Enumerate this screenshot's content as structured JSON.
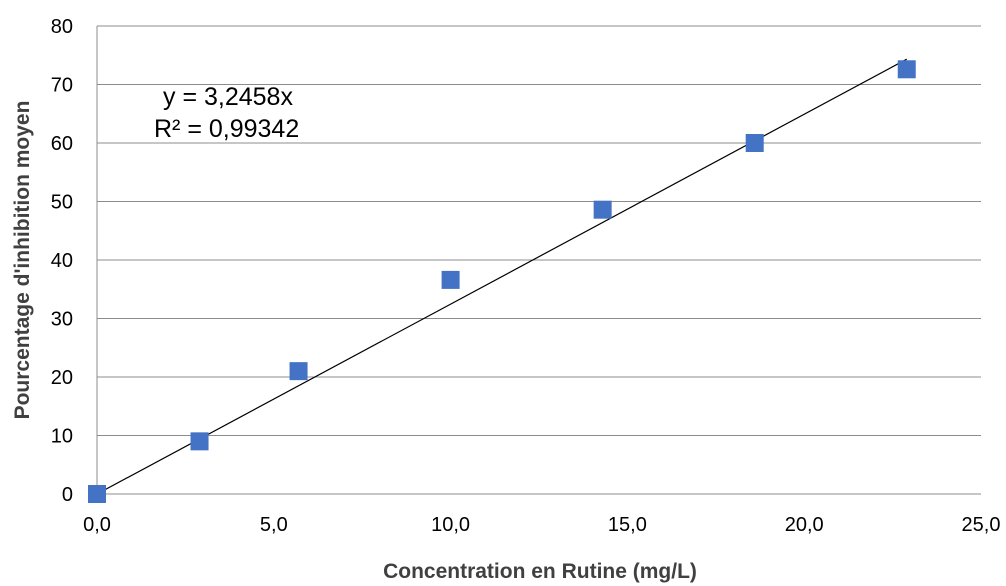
{
  "chart_data": {
    "type": "scatter",
    "title": "",
    "xlabel": "Concentration en Rutine (mg/L)",
    "ylabel": "Pourcentage d'inhibition moyen",
    "xlim": [
      0,
      25
    ],
    "ylim": [
      0,
      80
    ],
    "x_ticks": [
      "0,0",
      "5,0",
      "10,0",
      "15,0",
      "20,0",
      "25,0"
    ],
    "y_ticks": [
      "0",
      "10",
      "20",
      "30",
      "40",
      "50",
      "60",
      "70",
      "80"
    ],
    "grid": "horizontal",
    "legend": "none",
    "series": [
      {
        "marker": "square",
        "color": "#4472C4",
        "x": [
          0.0,
          2.9,
          5.7,
          10.0,
          14.3,
          18.6,
          22.9
        ],
        "y": [
          0.0,
          9.0,
          21.0,
          36.6,
          48.6,
          60.0,
          72.6
        ]
      }
    ],
    "trendline": {
      "type": "linear",
      "color": "#000000",
      "slope": 3.2458,
      "intercept": 0,
      "x_range": [
        0.0,
        22.9
      ],
      "equation": "y = 3,2458x",
      "r_squared": "R² = 0,99342"
    }
  }
}
